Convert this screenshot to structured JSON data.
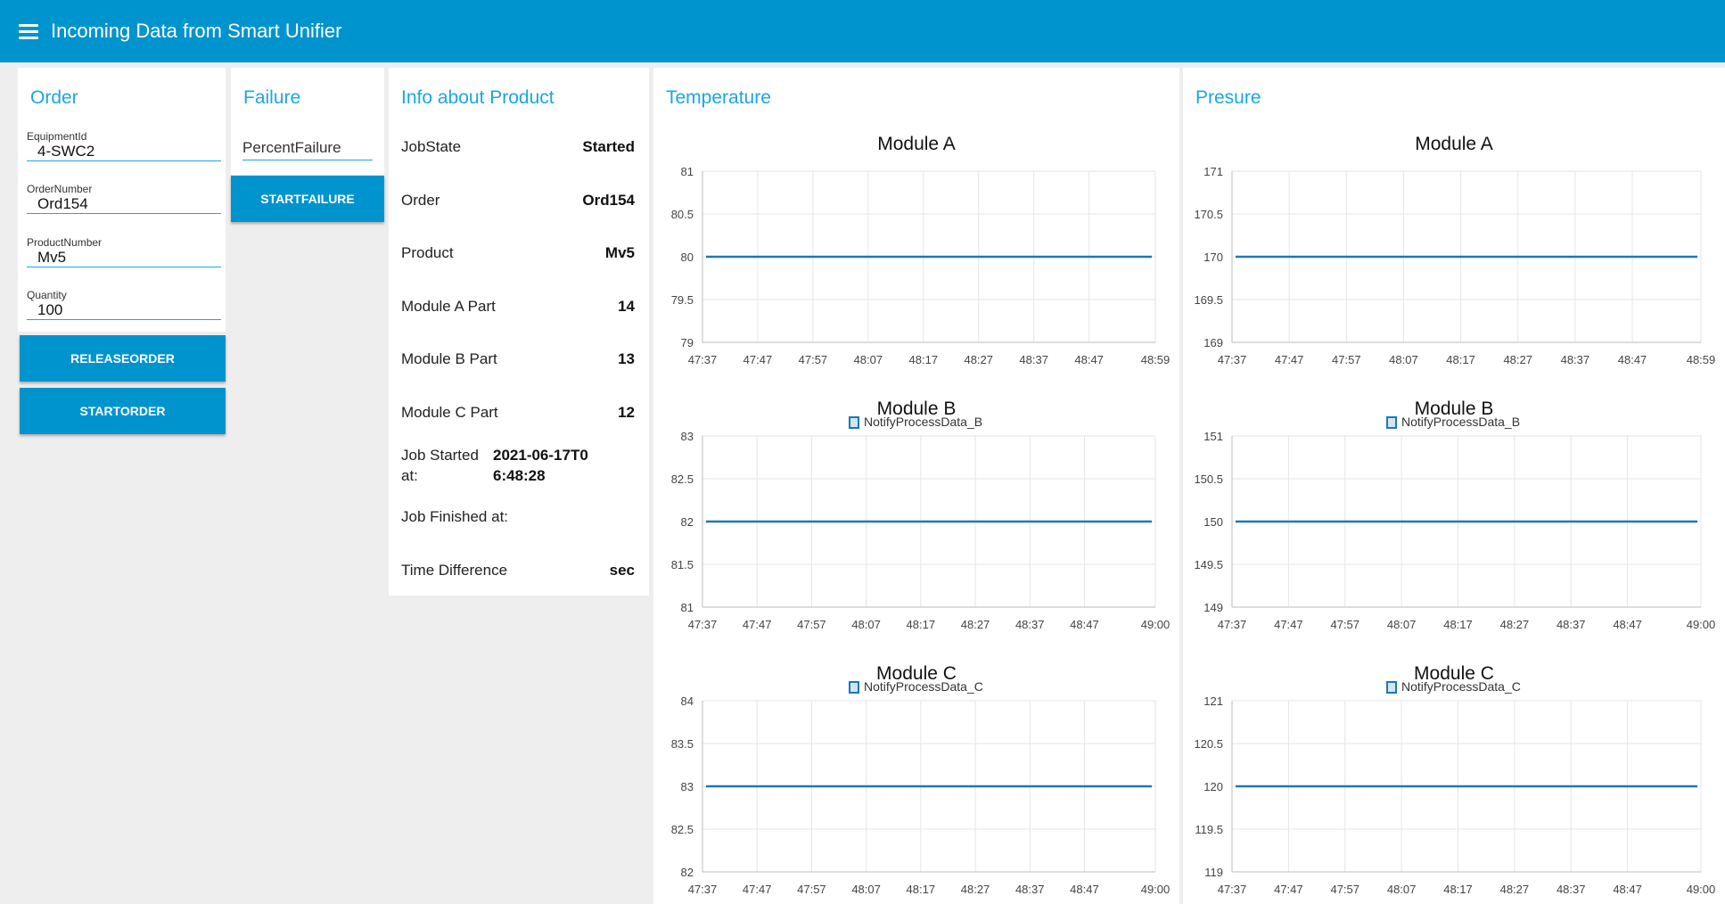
{
  "header": {
    "title": "Incoming Data from Smart Unifier"
  },
  "order": {
    "title": "Order",
    "fields": [
      {
        "label": "EquipmentId",
        "value": "4-SWC2"
      },
      {
        "label": "OrderNumber",
        "value": "Ord154"
      },
      {
        "label": "ProductNumber",
        "value": "Mv5"
      },
      {
        "label": "Quantity",
        "value": "100"
      }
    ],
    "release_button": "RELEASEORDER",
    "start_button": "STARTORDER"
  },
  "failure": {
    "title": "Failure",
    "placeholder": "PercentFailure",
    "start_button": "STARTFAILURE"
  },
  "info": {
    "title": "Info about Product",
    "rows": [
      {
        "label": "JobState",
        "value": "Started"
      },
      {
        "label": "Order",
        "value": "Ord154"
      },
      {
        "label": "Product",
        "value": "Mv5"
      },
      {
        "label": "Module A Part",
        "value": "14"
      },
      {
        "label": "Module B Part",
        "value": "13"
      },
      {
        "label": "Module C Part",
        "value": "12"
      }
    ],
    "job_started_label": "Job Started at:",
    "job_started_value": "2021-06-17T06:48:28",
    "job_finished_label": "Job Finished at:",
    "time_difference_label": "Time Difference",
    "time_difference_value": "sec"
  },
  "temperature": {
    "title": "Temperature"
  },
  "pressure": {
    "title": "Presure"
  },
  "colors": {
    "header": "#0094ce",
    "accent": "#1aa7e1",
    "line": "#1f77b4"
  },
  "chart_data": [
    {
      "group": "Temperature",
      "type": "line",
      "title": "Module A",
      "legend": "",
      "x_ticks": [
        "47:37",
        "47:47",
        "47:57",
        "48:07",
        "48:17",
        "48:27",
        "48:37",
        "48:47",
        "48:59"
      ],
      "y_ticks": [
        "81",
        "80.5",
        "80",
        "79.5",
        "79"
      ],
      "ylim": [
        79,
        81
      ],
      "series": [
        {
          "x_range": [
            "47:37",
            "48:59"
          ],
          "value": 80
        }
      ]
    },
    {
      "group": "Temperature",
      "type": "line",
      "title": "Module B",
      "legend": "NotifyProcessData_B",
      "x_ticks": [
        "47:37",
        "47:47",
        "47:57",
        "48:07",
        "48:17",
        "48:27",
        "48:37",
        "48:47",
        "49:00"
      ],
      "y_ticks": [
        "83",
        "82.5",
        "82",
        "81.5",
        "81"
      ],
      "ylim": [
        81,
        83
      ],
      "series": [
        {
          "name": "NotifyProcessData_B",
          "x_range": [
            "47:37",
            "49:00"
          ],
          "value": 82
        }
      ]
    },
    {
      "group": "Temperature",
      "type": "line",
      "title": "Module C",
      "legend": "NotifyProcessData_C",
      "x_ticks": [
        "47:37",
        "47:47",
        "47:57",
        "48:07",
        "48:17",
        "48:27",
        "48:37",
        "48:47",
        "49:00"
      ],
      "y_ticks": [
        "84",
        "83.5",
        "83",
        "82.5",
        "82"
      ],
      "ylim": [
        82,
        84
      ],
      "series": [
        {
          "name": "NotifyProcessData_C",
          "x_range": [
            "47:37",
            "49:00"
          ],
          "value": 83
        }
      ]
    },
    {
      "group": "Presure",
      "type": "line",
      "title": "Module A",
      "legend": "",
      "x_ticks": [
        "47:37",
        "47:47",
        "47:57",
        "48:07",
        "48:17",
        "48:27",
        "48:37",
        "48:47",
        "48:59"
      ],
      "y_ticks": [
        "171",
        "170.5",
        "170",
        "169.5",
        "169"
      ],
      "ylim": [
        169,
        171
      ],
      "series": [
        {
          "x_range": [
            "47:37",
            "48:59"
          ],
          "value": 170
        }
      ]
    },
    {
      "group": "Presure",
      "type": "line",
      "title": "Module B",
      "legend": "NotifyProcessData_B",
      "x_ticks": [
        "47:37",
        "47:47",
        "47:57",
        "48:07",
        "48:17",
        "48:27",
        "48:37",
        "48:47",
        "49:00"
      ],
      "y_ticks": [
        "151",
        "150.5",
        "150",
        "149.5",
        "149"
      ],
      "ylim": [
        149,
        151
      ],
      "series": [
        {
          "name": "NotifyProcessData_B",
          "x_range": [
            "47:37",
            "49:00"
          ],
          "value": 150
        }
      ]
    },
    {
      "group": "Presure",
      "type": "line",
      "title": "Module C",
      "legend": "NotifyProcessData_C",
      "x_ticks": [
        "47:37",
        "47:47",
        "47:57",
        "48:07",
        "48:17",
        "48:27",
        "48:37",
        "48:47",
        "49:00"
      ],
      "y_ticks": [
        "121",
        "120.5",
        "120",
        "119.5",
        "119"
      ],
      "ylim": [
        119,
        121
      ],
      "series": [
        {
          "name": "NotifyProcessData_C",
          "x_range": [
            "47:37",
            "49:00"
          ],
          "value": 120
        }
      ]
    }
  ]
}
